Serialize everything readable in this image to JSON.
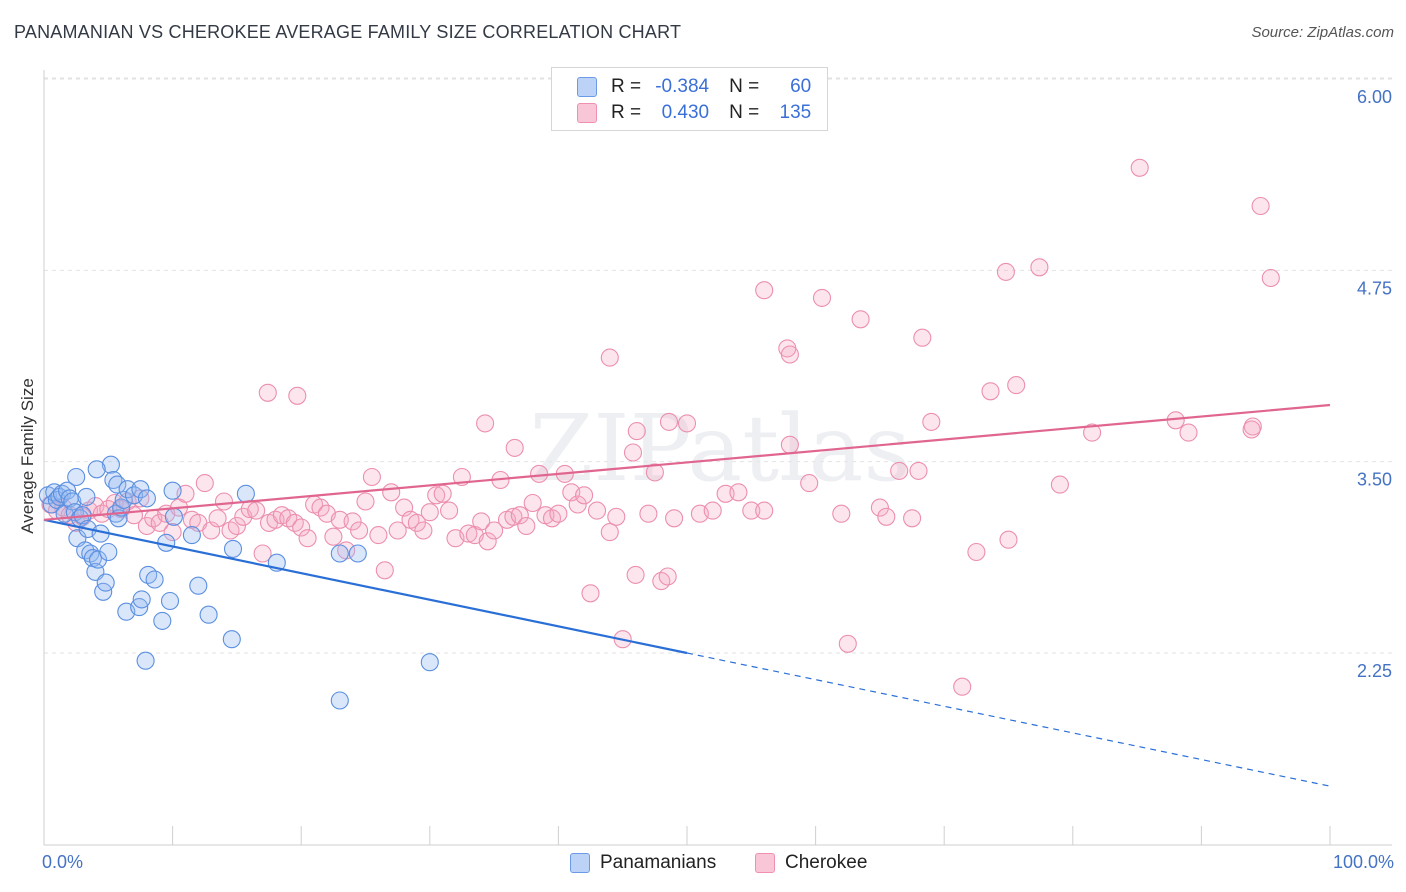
{
  "title": "PANAMANIAN VS CHEROKEE AVERAGE FAMILY SIZE CORRELATION CHART",
  "source": "Source: ZipAtlas.com",
  "watermark": "ZIPatlas",
  "legend": {
    "r_label": "R =",
    "n_label": "N =",
    "rows": [
      {
        "series": "Panamanians",
        "r": "-0.384",
        "n": "60",
        "color": "#6b9be6"
      },
      {
        "series": "Cherokee",
        "r": "0.430",
        "n": "135",
        "color": "#f08fb0"
      }
    ]
  },
  "bottom_legend": [
    {
      "label": "Panamanians",
      "color": "#6b9be6"
    },
    {
      "label": "Cherokee",
      "color": "#f08fb0"
    }
  ],
  "chart_data": {
    "type": "scatter",
    "title": "PANAMANIAN VS CHEROKEE AVERAGE FAMILY SIZE CORRELATION CHART",
    "xlabel": "",
    "ylabel": "Average Family Size",
    "xlim": [
      0,
      100
    ],
    "ylim": [
      1.0,
      6.2
    ],
    "x_tick_labels": [
      "0.0%",
      "100.0%"
    ],
    "y_ticks": [
      2.25,
      3.5,
      4.75,
      6.0
    ],
    "y_tick_labels": [
      "2.25",
      "3.50",
      "4.75",
      "6.00"
    ],
    "grid": true,
    "series": [
      {
        "name": "Panamanians",
        "color": "#6b9be6",
        "r": -0.384,
        "n": 60,
        "trend": {
          "x0": 0,
          "y0": 3.12,
          "x1": 50,
          "y1": 2.25,
          "dashed_to_x": 100,
          "dashed_to_y": 1.38
        },
        "points": [
          [
            0.3,
            3.28
          ],
          [
            0.6,
            3.22
          ],
          [
            0.8,
            3.3
          ],
          [
            1.0,
            3.25
          ],
          [
            1.2,
            3.27
          ],
          [
            1.4,
            3.29
          ],
          [
            1.6,
            3.16
          ],
          [
            1.8,
            3.31
          ],
          [
            2.0,
            3.26
          ],
          [
            2.2,
            3.24
          ],
          [
            2.4,
            3.17
          ],
          [
            2.6,
            3.0
          ],
          [
            2.8,
            3.13
          ],
          [
            3.0,
            3.15
          ],
          [
            3.2,
            2.92
          ],
          [
            3.4,
            3.06
          ],
          [
            3.6,
            2.9
          ],
          [
            3.8,
            2.87
          ],
          [
            4.0,
            2.78
          ],
          [
            4.2,
            2.86
          ],
          [
            4.4,
            3.03
          ],
          [
            4.6,
            2.65
          ],
          [
            4.8,
            2.71
          ],
          [
            5.0,
            2.91
          ],
          [
            5.2,
            3.48
          ],
          [
            5.4,
            3.38
          ],
          [
            5.6,
            3.16
          ],
          [
            5.8,
            3.13
          ],
          [
            6.0,
            3.2
          ],
          [
            6.2,
            3.25
          ],
          [
            2.5,
            3.4
          ],
          [
            3.3,
            3.27
          ],
          [
            4.1,
            3.45
          ],
          [
            5.7,
            3.35
          ],
          [
            6.5,
            3.32
          ],
          [
            7.0,
            3.28
          ],
          [
            7.5,
            3.32
          ],
          [
            8.0,
            3.26
          ],
          [
            6.4,
            2.52
          ],
          [
            7.4,
            2.55
          ],
          [
            7.6,
            2.6
          ],
          [
            7.9,
            2.2
          ],
          [
            8.1,
            2.76
          ],
          [
            8.6,
            2.73
          ],
          [
            9.2,
            2.46
          ],
          [
            9.5,
            2.97
          ],
          [
            9.8,
            2.59
          ],
          [
            10.0,
            3.31
          ],
          [
            10.1,
            3.14
          ],
          [
            11.5,
            3.02
          ],
          [
            12.0,
            2.69
          ],
          [
            12.8,
            2.5
          ],
          [
            14.6,
            2.34
          ],
          [
            14.7,
            2.93
          ],
          [
            15.7,
            3.29
          ],
          [
            18.1,
            2.84
          ],
          [
            23.0,
            2.9
          ],
          [
            24.4,
            2.9
          ],
          [
            23.0,
            1.94
          ],
          [
            30.0,
            2.19
          ]
        ]
      },
      {
        "name": "Cherokee",
        "color": "#f08fb0",
        "r": 0.43,
        "n": 135,
        "trend": {
          "x0": 0,
          "y0": 3.12,
          "x1": 100,
          "y1": 3.87
        },
        "points": [
          [
            0.5,
            3.22
          ],
          [
            1.0,
            3.18
          ],
          [
            1.5,
            3.2
          ],
          [
            2.0,
            3.15
          ],
          [
            2.5,
            3.1
          ],
          [
            3.0,
            3.14
          ],
          [
            3.5,
            3.18
          ],
          [
            4.0,
            3.21
          ],
          [
            4.5,
            3.16
          ],
          [
            5.0,
            3.19
          ],
          [
            5.5,
            3.23
          ],
          [
            6.0,
            3.19
          ],
          [
            6.5,
            3.24
          ],
          [
            7.0,
            3.15
          ],
          [
            7.5,
            3.26
          ],
          [
            8.0,
            3.08
          ],
          [
            8.5,
            3.13
          ],
          [
            9.0,
            3.1
          ],
          [
            9.5,
            3.16
          ],
          [
            10.0,
            3.04
          ],
          [
            10.5,
            3.2
          ],
          [
            11.0,
            3.29
          ],
          [
            11.5,
            3.12
          ],
          [
            12.0,
            3.1
          ],
          [
            12.5,
            3.36
          ],
          [
            13.0,
            3.05
          ],
          [
            13.5,
            3.13
          ],
          [
            14.0,
            3.24
          ],
          [
            14.5,
            3.05
          ],
          [
            15.0,
            3.08
          ],
          [
            15.5,
            3.14
          ],
          [
            16.0,
            3.19
          ],
          [
            16.5,
            3.18
          ],
          [
            17.0,
            2.9
          ],
          [
            17.5,
            3.1
          ],
          [
            18.0,
            3.12
          ],
          [
            18.5,
            3.15
          ],
          [
            19.0,
            3.13
          ],
          [
            19.5,
            3.1
          ],
          [
            20.0,
            3.07
          ],
          [
            20.5,
            3.0
          ],
          [
            21.0,
            3.22
          ],
          [
            21.5,
            3.2
          ],
          [
            22.0,
            3.16
          ],
          [
            22.5,
            3.01
          ],
          [
            23.0,
            3.12
          ],
          [
            23.5,
            2.92
          ],
          [
            24.0,
            3.11
          ],
          [
            24.5,
            3.05
          ],
          [
            25.0,
            3.24
          ],
          [
            25.5,
            3.4
          ],
          [
            26.0,
            3.02
          ],
          [
            26.5,
            2.79
          ],
          [
            27.0,
            3.3
          ],
          [
            27.5,
            3.05
          ],
          [
            28.0,
            3.2
          ],
          [
            28.5,
            3.12
          ],
          [
            29.0,
            3.1
          ],
          [
            29.5,
            3.05
          ],
          [
            30.0,
            3.17
          ],
          [
            30.5,
            3.28
          ],
          [
            31.0,
            3.29
          ],
          [
            31.5,
            3.18
          ],
          [
            32.0,
            3.0
          ],
          [
            32.5,
            3.4
          ],
          [
            33.0,
            3.03
          ],
          [
            33.5,
            3.02
          ],
          [
            34.0,
            3.11
          ],
          [
            34.5,
            2.98
          ],
          [
            35.0,
            3.05
          ],
          [
            35.5,
            3.38
          ],
          [
            36.0,
            3.12
          ],
          [
            36.5,
            3.14
          ],
          [
            37.0,
            3.15
          ],
          [
            37.5,
            3.08
          ],
          [
            38.0,
            3.23
          ],
          [
            38.5,
            3.42
          ],
          [
            39.0,
            3.15
          ],
          [
            39.5,
            3.13
          ],
          [
            40.0,
            3.16
          ],
          [
            40.5,
            3.42
          ],
          [
            41.0,
            3.3
          ],
          [
            41.5,
            3.22
          ],
          [
            42.0,
            3.28
          ],
          [
            42.5,
            2.64
          ],
          [
            43.0,
            3.18
          ],
          [
            44.0,
            3.04
          ],
          [
            44.5,
            3.14
          ],
          [
            45.0,
            2.34
          ],
          [
            46.0,
            2.76
          ],
          [
            47.0,
            3.16
          ],
          [
            47.5,
            3.43
          ],
          [
            48.0,
            2.72
          ],
          [
            48.5,
            2.75
          ],
          [
            49.0,
            3.13
          ],
          [
            50.0,
            3.75
          ],
          [
            51.0,
            3.16
          ],
          [
            52.0,
            3.18
          ],
          [
            53.0,
            3.29
          ],
          [
            54.0,
            3.3
          ],
          [
            55.0,
            3.18
          ],
          [
            56.0,
            3.18
          ],
          [
            58.0,
            3.61
          ],
          [
            59.5,
            3.36
          ],
          [
            62.0,
            3.16
          ],
          [
            62.5,
            2.31
          ],
          [
            65.0,
            3.2
          ],
          [
            65.5,
            3.14
          ],
          [
            66.5,
            3.44
          ],
          [
            67.5,
            3.13
          ],
          [
            68.0,
            3.44
          ],
          [
            69.0,
            3.76
          ],
          [
            72.5,
            2.91
          ],
          [
            75.0,
            2.99
          ],
          [
            79.0,
            3.35
          ],
          [
            81.5,
            3.69
          ],
          [
            88.0,
            3.77
          ],
          [
            94.0,
            3.73
          ],
          [
            63.5,
            4.43
          ],
          [
            34.3,
            3.75
          ],
          [
            19.7,
            3.93
          ],
          [
            17.4,
            3.95
          ],
          [
            36.6,
            3.59
          ],
          [
            44.0,
            4.18
          ],
          [
            46.1,
            3.7
          ],
          [
            57.8,
            4.24
          ],
          [
            60.5,
            4.57
          ],
          [
            58.0,
            4.2
          ],
          [
            68.3,
            4.31
          ],
          [
            73.6,
            3.96
          ],
          [
            75.6,
            4.0
          ],
          [
            94.6,
            5.17
          ],
          [
            95.4,
            4.7
          ],
          [
            74.8,
            4.74
          ],
          [
            77.4,
            4.77
          ],
          [
            85.2,
            5.42
          ],
          [
            93.9,
            3.71
          ],
          [
            89.0,
            3.69
          ],
          [
            71.4,
            2.03
          ],
          [
            56.0,
            4.62
          ],
          [
            45.8,
            3.56
          ],
          [
            48.6,
            3.76
          ]
        ]
      }
    ]
  }
}
